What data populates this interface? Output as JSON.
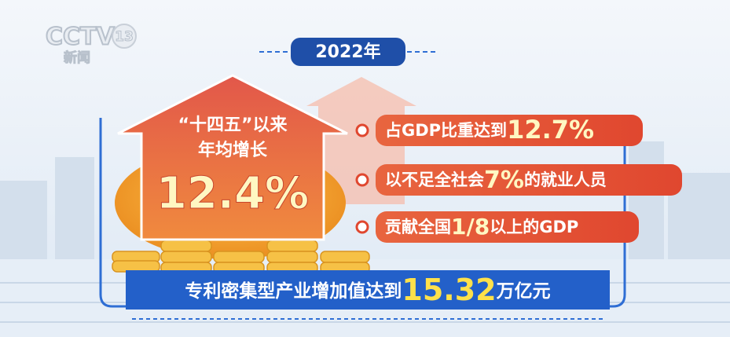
{
  "logo": {
    "channel": "CCTV",
    "number": "13",
    "label": "新闻"
  },
  "year": "2022年",
  "arrow": {
    "line1": "“十四五”以来",
    "line2": "年均增长",
    "value": "12.4%"
  },
  "bullets": [
    {
      "text": "占GDP比重达到",
      "highlight": "12.7%"
    },
    {
      "text": "以不足全社会",
      "highlight": "7%",
      "suffix": "的就业人员"
    },
    {
      "text": "贡献全国",
      "highlight": "1/8",
      "suffix": "以上的GDP"
    }
  ],
  "banner": {
    "text": "专利密集型产业增加值达到",
    "highlight": "15.32",
    "suffix": "万亿元"
  }
}
